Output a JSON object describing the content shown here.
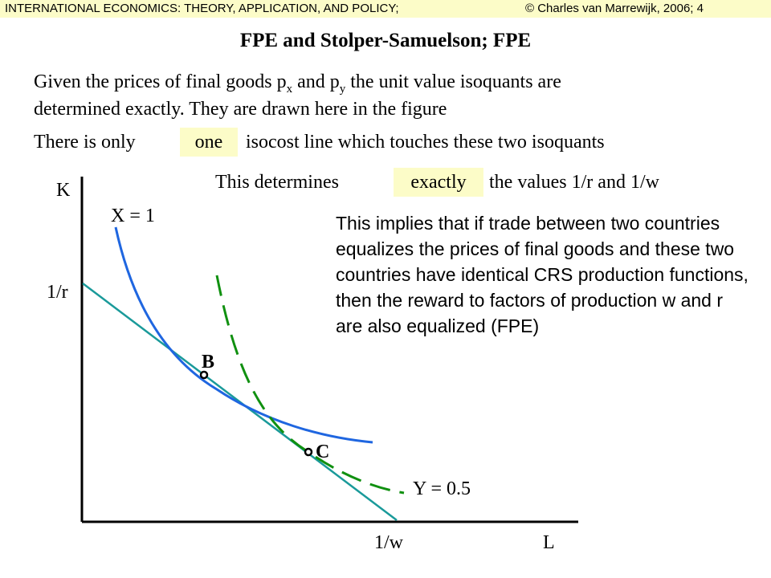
{
  "header": {
    "left": "INTERNATIONAL ECONOMICS: THEORY, APPLICATION, AND POLICY;",
    "right": "© Charles van Marrewijk, 2006; 4"
  },
  "title": "FPE and Stolper-Samuelson; FPE",
  "intro": {
    "line1_a": "Given the prices of final goods p",
    "sub_x": "x",
    "line1_b": " and p",
    "sub_y": "y",
    "line1_c": " the unit value isoquants are",
    "line2": "determined exactly. They are drawn here in the figure",
    "line3_a": "There is only",
    "line3_hl": "one",
    "line3_b": "isocost line which touches these two isoquants",
    "line4_a": "This determines",
    "line4_hl": "exactly",
    "line4_b": "the values 1/r and 1/w"
  },
  "implication": "This implies that if trade between two countries equalizes the prices of final goods and these two countries have identical CRS production functions, then the reward to factors of production w and r are also equalized (FPE)",
  "diagram": {
    "axis_y_label": "K",
    "axis_x_label": "L",
    "y_intercept_label": "1/r",
    "x_intercept_label": "1/w",
    "isoquant_x_label": "X = 1",
    "isoquant_y_label": "Y = 0.5",
    "point_b_label": "B",
    "point_c_label": "C",
    "colors": {
      "isoquant_x": "#1f66e0",
      "isoquant_y": "#109010",
      "isocost": "#1a9a9a",
      "axes": "#000000",
      "highlight": "#fcfcc8"
    }
  }
}
